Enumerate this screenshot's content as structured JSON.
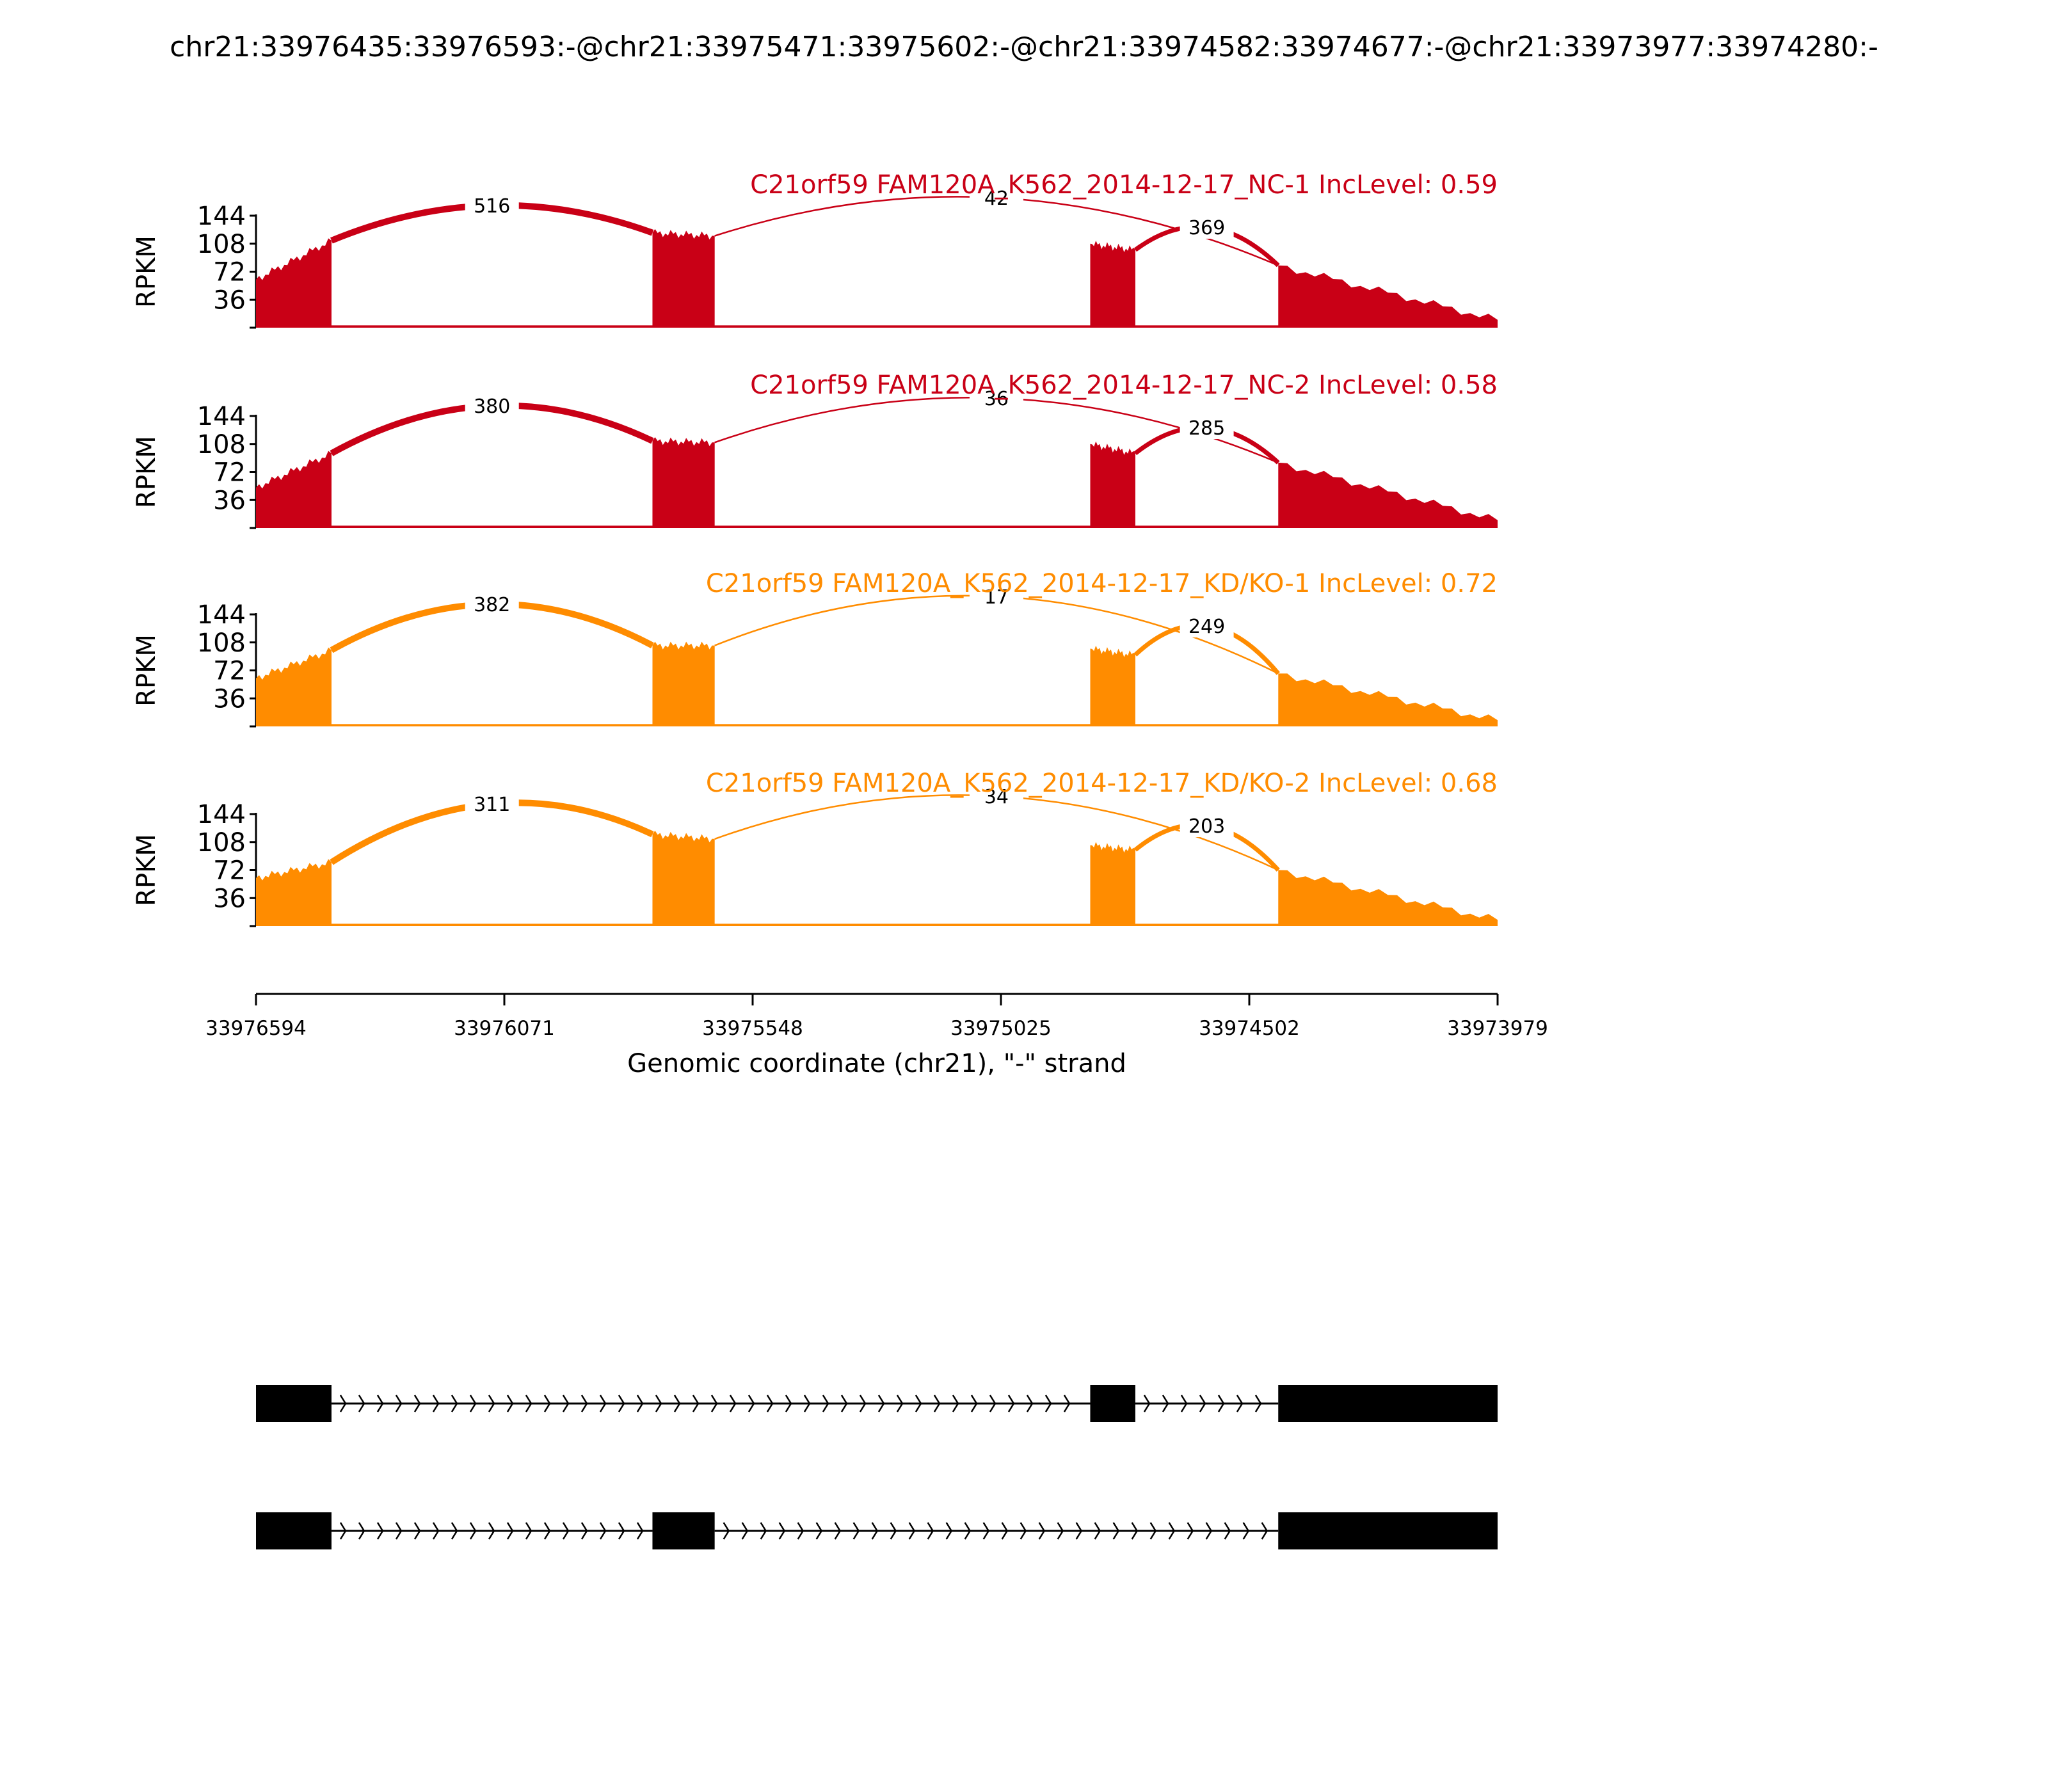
{
  "title": "chr21:33976435:33976593:-@chr21:33975471:33975602:-@chr21:33974582:33974677:-@chr21:33973977:33974280:-",
  "colors": {
    "nc": "#c90016",
    "kd": "#ff8c00",
    "axis": "#000000",
    "gene": "#000000"
  },
  "chart_data": {
    "type": "area",
    "subtype": "sashimi",
    "ylabel": "RPKM",
    "yticks": [
      36,
      72,
      108,
      144
    ],
    "ylim": [
      0,
      144
    ],
    "xlim": [
      33976594,
      33973979
    ],
    "x_reversed": true,
    "xticks": [
      33976594,
      33976071,
      33975548,
      33975025,
      33974502,
      33973979
    ],
    "xlabel": "Genomic coordinate (chr21), \"-\" strand",
    "exons": [
      {
        "start": 33976594,
        "end": 33976435
      },
      {
        "start": 33975759,
        "end": 33975628
      },
      {
        "start": 33974837,
        "end": 33974742
      },
      {
        "start": 33974441,
        "end": 33973979
      }
    ],
    "junctions": [
      {
        "from": 0,
        "to": 1
      },
      {
        "from": 1,
        "to": 3
      },
      {
        "from": 2,
        "to": 3
      }
    ],
    "intron_level": 3,
    "series": [
      {
        "name": "C21orf59 FAM120A_K562_2014-12-17_NC-1 IncLevel: 0.59",
        "group": "nc",
        "exon_levels": [
          [
            62,
            112
          ],
          [
            122,
            118
          ],
          [
            108,
            100
          ],
          [
            80,
            10
          ]
        ],
        "junction_counts": [
          "516",
          "42",
          "369"
        ]
      },
      {
        "name": "C21orf59 FAM120A_K562_2014-12-17_NC-2 IncLevel: 0.58",
        "group": "nc",
        "exon_levels": [
          [
            52,
            96
          ],
          [
            112,
            110
          ],
          [
            108,
            96
          ],
          [
            84,
            10
          ]
        ],
        "junction_counts": [
          "380",
          "36",
          "285"
        ]
      },
      {
        "name": "C21orf59 FAM120A_K562_2014-12-17_KD/KO-1 IncLevel: 0.72",
        "group": "kd",
        "exon_levels": [
          [
            62,
            98
          ],
          [
            104,
            104
          ],
          [
            100,
            92
          ],
          [
            68,
            8
          ]
        ],
        "junction_counts": [
          "382",
          "17",
          "249"
        ]
      },
      {
        "name": "C21orf59 FAM120A_K562_2014-12-17_KD/KO-2 IncLevel: 0.68",
        "group": "kd",
        "exon_levels": [
          [
            62,
            82
          ],
          [
            118,
            112
          ],
          [
            104,
            98
          ],
          [
            72,
            8
          ]
        ],
        "junction_counts": [
          "311",
          "34",
          "203"
        ]
      }
    ],
    "isoforms": [
      {
        "exons": [
          0,
          2,
          3
        ]
      },
      {
        "exons": [
          0,
          1,
          3
        ]
      }
    ]
  }
}
